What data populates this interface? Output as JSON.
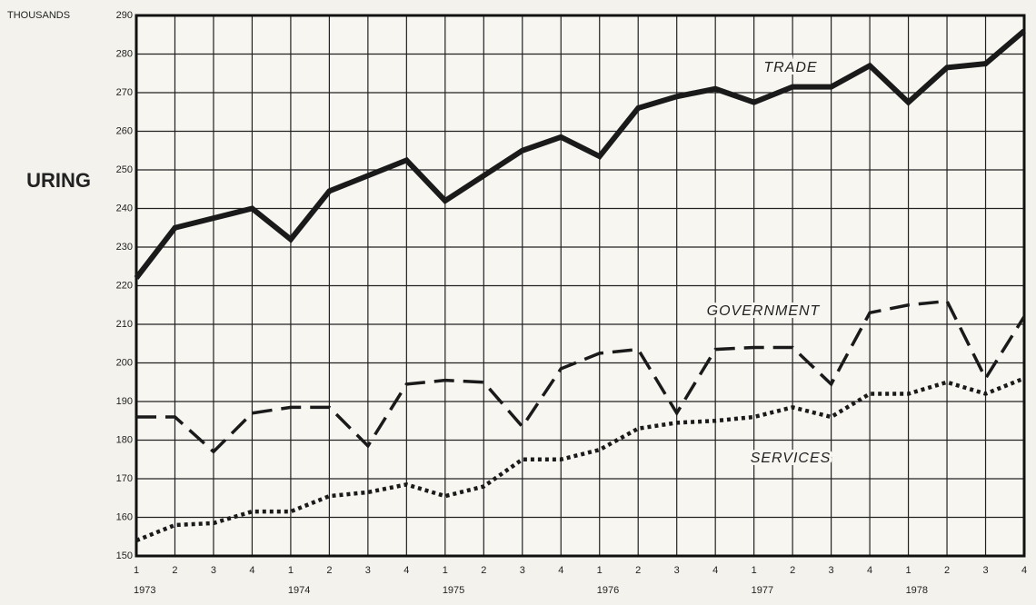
{
  "chart_data": {
    "type": "line",
    "y_label": "THOUSANDS",
    "side_text": "URING",
    "categories": [
      "1",
      "2",
      "3",
      "4",
      "1",
      "2",
      "3",
      "4",
      "1",
      "2",
      "3",
      "4",
      "1",
      "2",
      "3",
      "4",
      "1",
      "2",
      "3",
      "4",
      "1",
      "2",
      "3",
      "4"
    ],
    "years": [
      "1973",
      "1974",
      "1975",
      "1976",
      "1977",
      "1978"
    ],
    "ylim": [
      150,
      290
    ],
    "yticks": [
      150,
      160,
      170,
      180,
      190,
      200,
      210,
      220,
      230,
      240,
      250,
      260,
      270,
      280,
      290
    ],
    "grid": true,
    "series": [
      {
        "name": "TRADE",
        "color": "#1a1a1a",
        "dash": "solid",
        "values": [
          222,
          235,
          237.5,
          240,
          232,
          244.5,
          248.5,
          252.5,
          242,
          248.5,
          255,
          258.5,
          253.5,
          266,
          269,
          271,
          267.5,
          271.5,
          271.5,
          277,
          267.5,
          276.5,
          277.5,
          286
        ]
      },
      {
        "name": "GOVERNMENT",
        "color": "#1a1a1a",
        "dash": "dashed",
        "values": [
          186,
          186,
          177,
          187,
          188.5,
          188.5,
          178.5,
          194.5,
          195.5,
          195,
          183.5,
          198.5,
          202.5,
          203.5,
          187,
          203.5,
          204,
          204,
          194.5,
          213,
          215,
          216,
          196,
          212
        ]
      },
      {
        "name": "SERVICES",
        "color": "#1a1a1a",
        "dash": "dotted",
        "values": [
          154,
          158,
          158.5,
          161.5,
          161.5,
          165.5,
          166.5,
          168.5,
          165.5,
          168,
          175,
          175,
          177.5,
          183,
          184.5,
          185,
          186,
          188.5,
          186,
          192,
          192,
          195,
          192,
          196
        ]
      }
    ]
  }
}
